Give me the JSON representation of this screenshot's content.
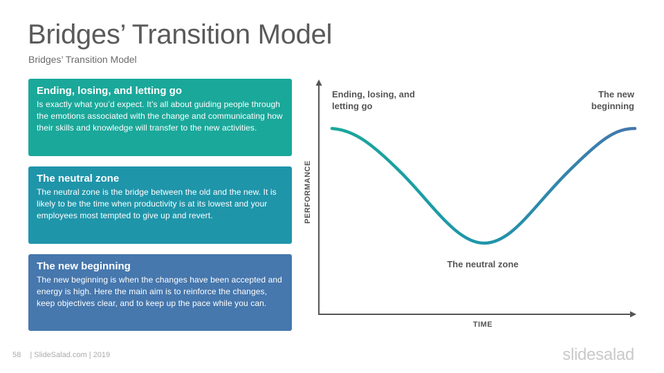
{
  "slide": {
    "title": "Bridges’ Transition Model",
    "subtitle": "Bridges’ Transition Model"
  },
  "cards": [
    {
      "heading": "Ending, losing, and letting go",
      "body": "Is exactly what you’d expect. It’s all about guiding people through the emotions associated with the change and communicating how their skills and knowledge will transfer to the new activities.",
      "color": "#1aa89a"
    },
    {
      "heading": "The neutral zone",
      "body": "The neutral zone is the bridge between the old and the new. It is likely to be the time when productivity is at its lowest and your employees most tempted to give up and revert.",
      "color": "#1f95aa"
    },
    {
      "heading": "The new beginning",
      "body": "The new beginning is when the changes have been accepted and energy is high. Here the main aim is to reinforce the changes, keep objectives clear, and to keep up the pace while you can.",
      "color": "#4677ad"
    }
  ],
  "diagram": {
    "x_axis_label": "TIME",
    "y_axis_label": "PERFORMANCE",
    "label_ending": "Ending, losing, and letting go",
    "label_neutral": "The neutral zone",
    "label_new": "The new beginning",
    "curve_colors": [
      "#1aa89a",
      "#1f95aa",
      "#4677ad"
    ]
  },
  "footer": {
    "page_number": "58",
    "credit": "| SlideSalad.com | 2019",
    "brand": "slidesalad"
  }
}
